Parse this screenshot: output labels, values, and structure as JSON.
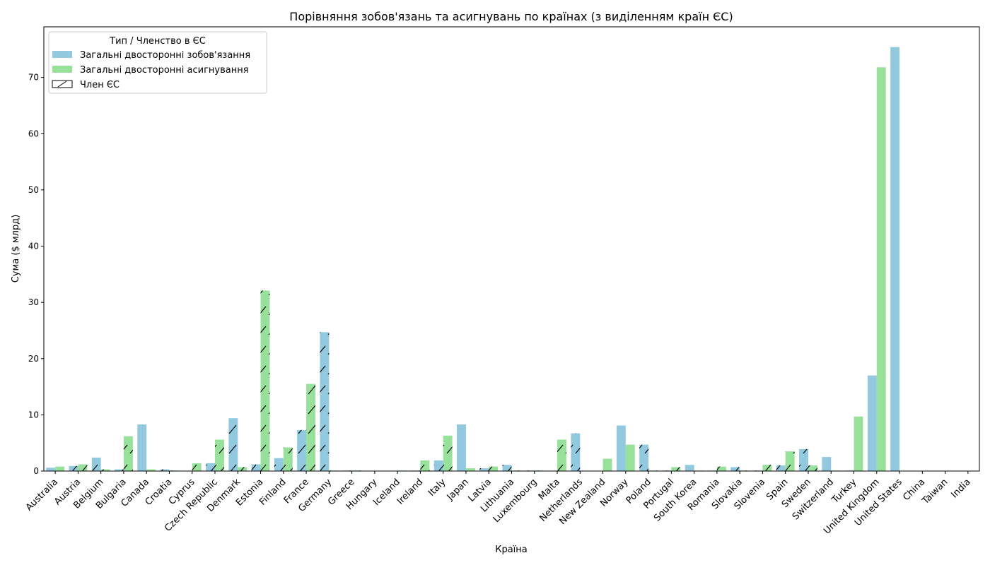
{
  "chart_data": {
    "type": "bar",
    "title": "Порівняння зобов'язань та асигнувань по країнах (з виділенням країн ЄС)",
    "xlabel": "Країна",
    "ylabel": "Сума ($ млрд)",
    "ylim": [
      0,
      79
    ],
    "yticks": [
      0,
      10,
      20,
      30,
      40,
      50,
      60,
      70
    ],
    "grid": false,
    "legend": {
      "title": "Тип / Членство в ЄС",
      "placement": "top-left",
      "eu_label": "Член ЄС"
    },
    "categories": [
      "Australia",
      "Austria",
      "Belgium",
      "Bulgaria",
      "Canada",
      "Croatia",
      "Cyprus",
      "Czech Republic",
      "Denmark",
      "Estonia",
      "Finland",
      "France",
      "Germany",
      "Greece",
      "Hungary",
      "Iceland",
      "Ireland",
      "Italy",
      "Japan",
      "Latvia",
      "Lithuania",
      "Luxembourg",
      "Malta",
      "Netherlands",
      "New Zealand",
      "Norway",
      "Poland",
      "Portugal",
      "South Korea",
      "Romania",
      "Slovakia",
      "Slovenia",
      "Spain",
      "Sweden",
      "Switzerland",
      "Turkey",
      "United Kingdom",
      "United States",
      "China",
      "Taiwan",
      "India"
    ],
    "eu_members": [
      false,
      true,
      true,
      true,
      false,
      true,
      true,
      true,
      true,
      true,
      true,
      true,
      true,
      true,
      true,
      false,
      true,
      true,
      false,
      true,
      true,
      true,
      true,
      true,
      false,
      false,
      true,
      true,
      false,
      true,
      true,
      true,
      true,
      true,
      false,
      false,
      false,
      false,
      false,
      false,
      false
    ],
    "series": [
      {
        "name": "Загальні двосторонні зобов'язання",
        "color": "#92c9df",
        "values": [
          0.6,
          0.9,
          2.4,
          0.3,
          8.3,
          0.3,
          0.0,
          1.4,
          9.4,
          1.2,
          2.3,
          7.3,
          24.7,
          0.1,
          0.0,
          0.0,
          0.1,
          1.9,
          8.3,
          0.5,
          1.1,
          0.1,
          0.0,
          6.7,
          0.0,
          8.1,
          4.7,
          0.1,
          1.1,
          0.1,
          0.7,
          0.1,
          1.0,
          3.9,
          2.5,
          0.1,
          17.0,
          75.4,
          0.0,
          0.0,
          0.0
        ]
      },
      {
        "name": "Загальні двосторонні асигнування",
        "color": "#98e19b",
        "values": [
          0.8,
          1.2,
          0.3,
          6.2,
          0.3,
          0.1,
          1.4,
          5.6,
          0.7,
          32.1,
          4.2,
          15.5,
          0.1,
          0.1,
          0.0,
          0.1,
          1.9,
          6.3,
          0.5,
          0.8,
          0.1,
          0.1,
          5.6,
          0.0,
          2.2,
          4.7,
          0.1,
          0.7,
          0.1,
          0.8,
          0.1,
          1.1,
          3.5,
          1.0,
          0.1,
          9.7,
          71.8,
          0.0,
          0.0,
          0.0,
          0.0
        ]
      }
    ]
  }
}
